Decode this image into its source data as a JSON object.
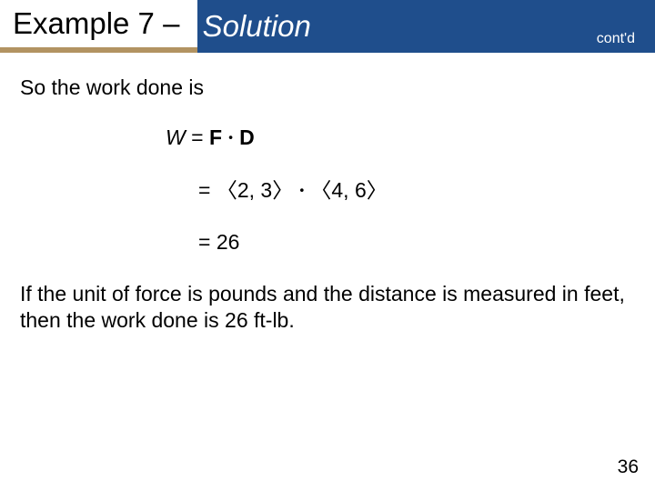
{
  "colors": {
    "title_left_bg": "#ffffff",
    "title_left_text": "#000000",
    "title_left_underline": "#b29362",
    "title_right_bg": "#1f4e8c",
    "title_right_text": "#ffffff",
    "contd_text": "#ffffff",
    "body_text": "#000000",
    "page_bg": "#ffffff"
  },
  "fontsizes": {
    "title": 33,
    "body": 23,
    "contd": 16,
    "pagen": 21
  },
  "title": {
    "left": "Example 7 – ",
    "right": "Solution",
    "contd": "cont'd"
  },
  "body": {
    "intro": "So the work done is",
    "eq1_W": "W",
    "eq1_eq": " = ",
    "eq1_F": "F",
    "eq1_dot": " · ",
    "eq1_D": "D",
    "eq2_prefix": " = ",
    "eq2_langle1": "〈",
    "eq2_v1": "2, 3",
    "eq2_rangle1": "〉",
    "eq2_dot": " · ",
    "eq2_langle2": "〈",
    "eq2_v2": "4, 6",
    "eq2_rangle2": "〉",
    "eq3": " = 26",
    "closing": "If the unit of force is pounds and the distance is measured in feet, then the work done is 26 ft-lb."
  },
  "page_number": "36"
}
